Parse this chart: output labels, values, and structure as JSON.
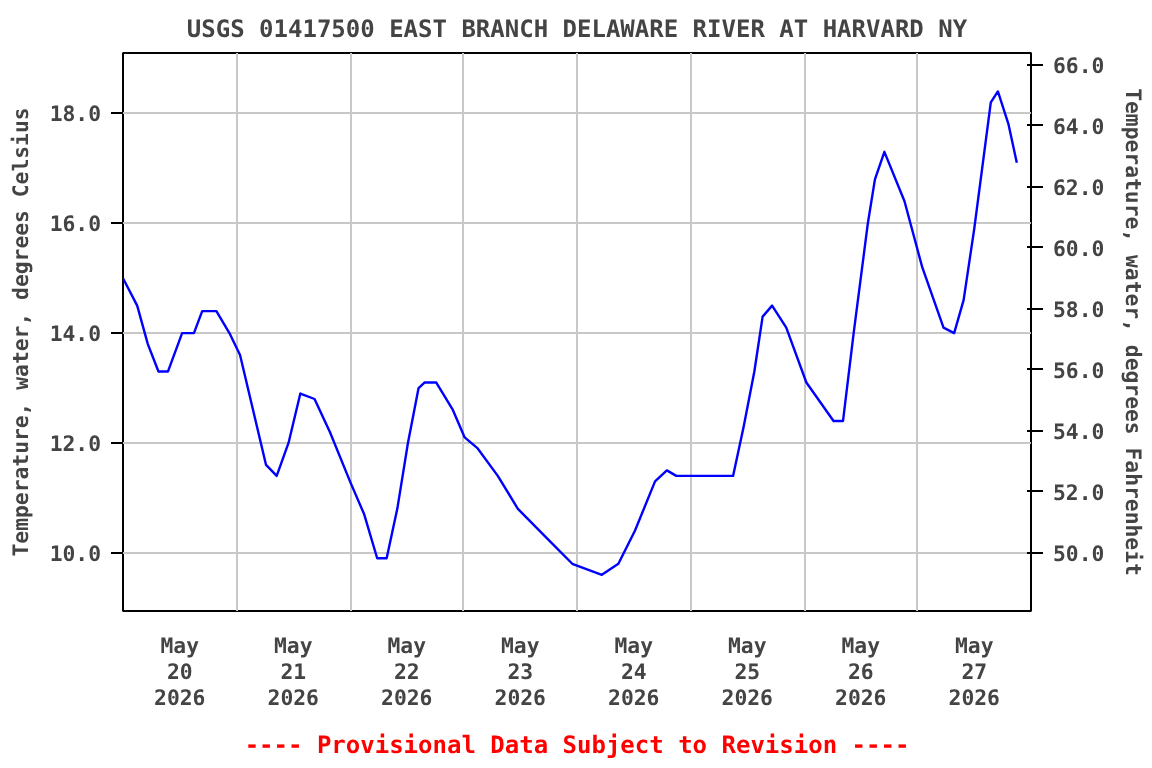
{
  "chart_data": {
    "type": "line",
    "title": "USGS 01417500 EAST BRANCH DELAWARE RIVER AT HARVARD NY",
    "ylabel": "Temperature, water, degrees Celsius",
    "y2label": "Temperature, water, degrees Fahrenheit",
    "annotations": [
      "---- Provisional Data Subject to Revision ----"
    ],
    "xlim": [
      "2026-05-20T00:00",
      "2026-05-28T00:00"
    ],
    "xticks": [
      {
        "value": "2026-05-20T12:00",
        "label": "May\n20\n2026"
      },
      {
        "value": "2026-05-21T12:00",
        "label": "May\n21\n2026"
      },
      {
        "value": "2026-05-22T12:00",
        "label": "May\n22\n2026"
      },
      {
        "value": "2026-05-23T12:00",
        "label": "May\n23\n2026"
      },
      {
        "value": "2026-05-24T12:00",
        "label": "May\n24\n2026"
      },
      {
        "value": "2026-05-25T12:00",
        "label": "May\n25\n2026"
      },
      {
        "value": "2026-05-26T12:00",
        "label": "May\n26\n2026"
      },
      {
        "value": "2026-05-27T12:00",
        "label": "May\n27\n2026"
      },
      {
        "value": "2026-05-21T00:00",
        "label": null
      },
      {
        "value": "2026-05-22T00:00",
        "label": null
      },
      {
        "value": "2026-05-23T00:00",
        "label": null
      },
      {
        "value": "2026-05-24T00:00",
        "label": null
      },
      {
        "value": "2026-05-25T00:00",
        "label": null
      },
      {
        "value": "2026-05-26T00:00",
        "label": null
      },
      {
        "value": "2026-05-27T00:00",
        "label": null
      }
    ],
    "ylim": [
      8.94,
      19.1
    ],
    "yticks": [
      {
        "value": 10,
        "label": "10.0"
      },
      {
        "value": 12,
        "label": "12.0"
      },
      {
        "value": 14,
        "label": "14.0"
      },
      {
        "value": 16,
        "label": "16.0"
      },
      {
        "value": 18,
        "label": "18.0"
      }
    ],
    "y2lim": [
      48.09,
      66.38
    ],
    "y2ticks": [
      {
        "value": 50,
        "label": "50.0"
      },
      {
        "value": 52,
        "label": "52.0"
      },
      {
        "value": 54,
        "label": "54.0"
      },
      {
        "value": 56,
        "label": "56.0"
      },
      {
        "value": 58,
        "label": "58.0"
      },
      {
        "value": 60,
        "label": "60.0"
      },
      {
        "value": 62,
        "label": "62.0"
      },
      {
        "value": 64,
        "label": "64.0"
      },
      {
        "value": 66,
        "label": "66.0"
      }
    ],
    "grid": true,
    "series": [
      {
        "color": "#0000ff",
        "x": [
          "2026-05-20T00:00",
          "2026-05-20T03:00",
          "2026-05-20T05:15",
          "2026-05-20T07:30",
          "2026-05-20T09:30",
          "2026-05-20T12:30",
          "2026-05-20T15:00",
          "2026-05-20T16:45",
          "2026-05-20T19:45",
          "2026-05-20T22:30",
          "2026-05-21T00:45",
          "2026-05-21T03:30",
          "2026-05-21T06:15",
          "2026-05-21T08:30",
          "2026-05-21T11:00",
          "2026-05-21T13:30",
          "2026-05-21T16:30",
          "2026-05-21T19:45",
          "2026-05-22T00:00",
          "2026-05-22T03:00",
          "2026-05-22T05:45",
          "2026-05-22T07:45",
          "2026-05-22T10:00",
          "2026-05-22T12:15",
          "2026-05-22T14:30",
          "2026-05-22T15:45",
          "2026-05-22T18:15",
          "2026-05-22T21:45",
          "2026-05-23T00:15",
          "2026-05-23T03:00",
          "2026-05-23T07:15",
          "2026-05-23T11:30",
          "2026-05-23T17:15",
          "2026-05-23T23:00",
          "2026-05-24T05:15",
          "2026-05-24T08:45",
          "2026-05-24T12:15",
          "2026-05-24T16:30",
          "2026-05-24T19:00",
          "2026-05-24T21:00",
          "2026-05-25T04:00",
          "2026-05-25T09:00",
          "2026-05-25T11:15",
          "2026-05-25T13:30",
          "2026-05-25T15:15",
          "2026-05-25T17:15",
          "2026-05-25T20:15",
          "2026-05-26T00:30",
          "2026-05-26T06:15",
          "2026-05-26T08:15",
          "2026-05-26T10:30",
          "2026-05-26T13:30",
          "2026-05-26T15:00",
          "2026-05-26T17:00",
          "2026-05-26T21:15",
          "2026-05-27T01:00",
          "2026-05-27T05:30",
          "2026-05-27T07:45",
          "2026-05-27T09:45",
          "2026-05-27T12:00",
          "2026-05-27T15:30",
          "2026-05-27T17:00",
          "2026-05-27T19:15",
          "2026-05-27T21:00"
        ],
        "values": [
          15.0,
          14.5,
          13.8,
          13.3,
          13.3,
          14.0,
          14.0,
          14.4,
          14.4,
          14.0,
          13.6,
          12.6,
          11.6,
          11.4,
          12.0,
          12.9,
          12.8,
          12.2,
          11.3,
          10.7,
          9.9,
          9.9,
          10.8,
          12.0,
          13.0,
          13.1,
          13.1,
          12.6,
          12.1,
          11.9,
          11.4,
          10.8,
          10.3,
          9.8,
          9.6,
          9.8,
          10.4,
          11.3,
          11.5,
          11.4,
          11.4,
          11.4,
          12.3,
          13.3,
          14.3,
          14.5,
          14.1,
          13.1,
          12.4,
          12.4,
          14.0,
          16.0,
          16.8,
          17.3,
          16.4,
          15.2,
          14.1,
          14.0,
          14.6,
          15.9,
          18.2,
          18.4,
          17.8,
          17.1
        ]
      }
    ]
  }
}
